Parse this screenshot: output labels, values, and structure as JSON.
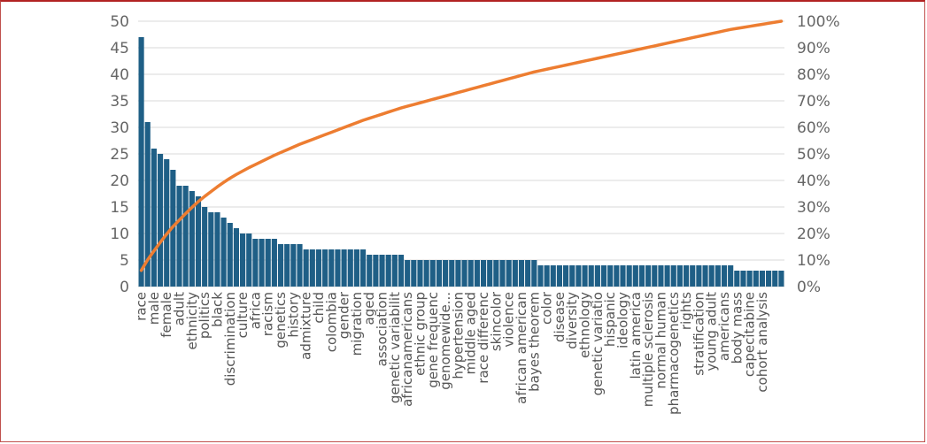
{
  "chart_data": {
    "type": "bar",
    "title": "",
    "xlabel": "",
    "ylabel": "",
    "ylim": [
      0,
      50
    ],
    "y2lim": [
      0,
      100
    ],
    "grid": true,
    "legend": "none",
    "bar_color": "#1f5f86",
    "line_color": "#ed7d31",
    "grid_color": "#d9d9d9",
    "y_ticks": [
      "0",
      "5",
      "10",
      "15",
      "20",
      "25",
      "30",
      "35",
      "40",
      "45",
      "50"
    ],
    "y2_ticks": [
      "0%",
      "10%",
      "20%",
      "30%",
      "40%",
      "50%",
      "60%",
      "70%",
      "80%",
      "90%",
      "100%"
    ],
    "labeled_categories": [
      "race",
      "male",
      "female",
      "adult",
      "ethnicity",
      "politics",
      "black",
      "discrimination",
      "culture",
      "africa",
      "racism",
      "genetics",
      "history",
      "admixture",
      "child",
      "colombia",
      "gender",
      "migration",
      "aged",
      "association",
      "genetic variabilit",
      "africanamericans",
      "ethnic group",
      "gene frequenc",
      "genomewide...",
      "hypertension",
      "middle aged",
      "race differenc",
      "skincolor",
      "violence",
      "african american",
      "bayes theorem",
      "color",
      "disease",
      "diversity",
      "ethnology",
      "genetic variatio",
      "hispanic",
      "ideology",
      "latin america",
      "multiple sclerosis",
      "normal human",
      "pharmacogenetics",
      "rights",
      "stratification",
      "young adult",
      "americans",
      "body mass",
      "capecitabine",
      "cohort analysis"
    ],
    "values": [
      47,
      31,
      26,
      25,
      24,
      22,
      19,
      19,
      18,
      17,
      15,
      14,
      14,
      13,
      12,
      11,
      10,
      10,
      9,
      9,
      9,
      9,
      8,
      8,
      8,
      8,
      7,
      7,
      7,
      7,
      7,
      7,
      7,
      7,
      7,
      7,
      6,
      6,
      6,
      6,
      6,
      6,
      5,
      5,
      5,
      5,
      5,
      5,
      5,
      5,
      5,
      5,
      5,
      5,
      5,
      5,
      5,
      5,
      5,
      5,
      5,
      5,
      5,
      4,
      4,
      4,
      4,
      4,
      4,
      4,
      4,
      4,
      4,
      4,
      4,
      4,
      4,
      4,
      4,
      4,
      4,
      4,
      4,
      4,
      4,
      4,
      4,
      4,
      4,
      4,
      4,
      4,
      4,
      4,
      3,
      3,
      3,
      3,
      3,
      3,
      3,
      3
    ]
  }
}
